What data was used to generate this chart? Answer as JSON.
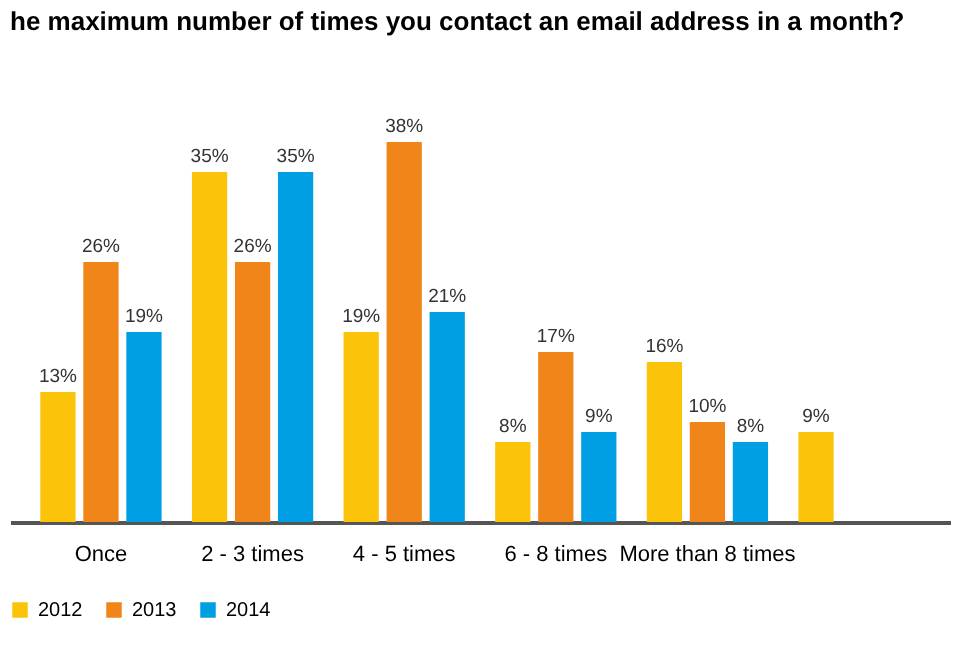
{
  "chart_data": {
    "type": "bar",
    "title": "he maximum number of times you contact an email address in a month?",
    "categories": [
      "Once",
      "2 - 3 times",
      "4 - 5 times",
      "6 - 8 times",
      "More than 8 times",
      null
    ],
    "series": [
      {
        "name": "2012",
        "color": "#fcc30b",
        "values": [
          13,
          35,
          19,
          8,
          16,
          9
        ],
        "value_labels": [
          "13%",
          "35%",
          "19%",
          "8%",
          "16%",
          "9%"
        ]
      },
      {
        "name": "2013",
        "color": "#f08519",
        "values": [
          26,
          26,
          38,
          17,
          10,
          null
        ],
        "value_labels": [
          "26%",
          "26%",
          "38%",
          "17%",
          "10%",
          null
        ]
      },
      {
        "name": "2014",
        "color": "#009fe3",
        "values": [
          19,
          35,
          21,
          9,
          8,
          null
        ],
        "value_labels": [
          "19%",
          "35%",
          "21%",
          "9%",
          "8%",
          null
        ]
      }
    ],
    "legend": "bottom",
    "grid": false
  }
}
